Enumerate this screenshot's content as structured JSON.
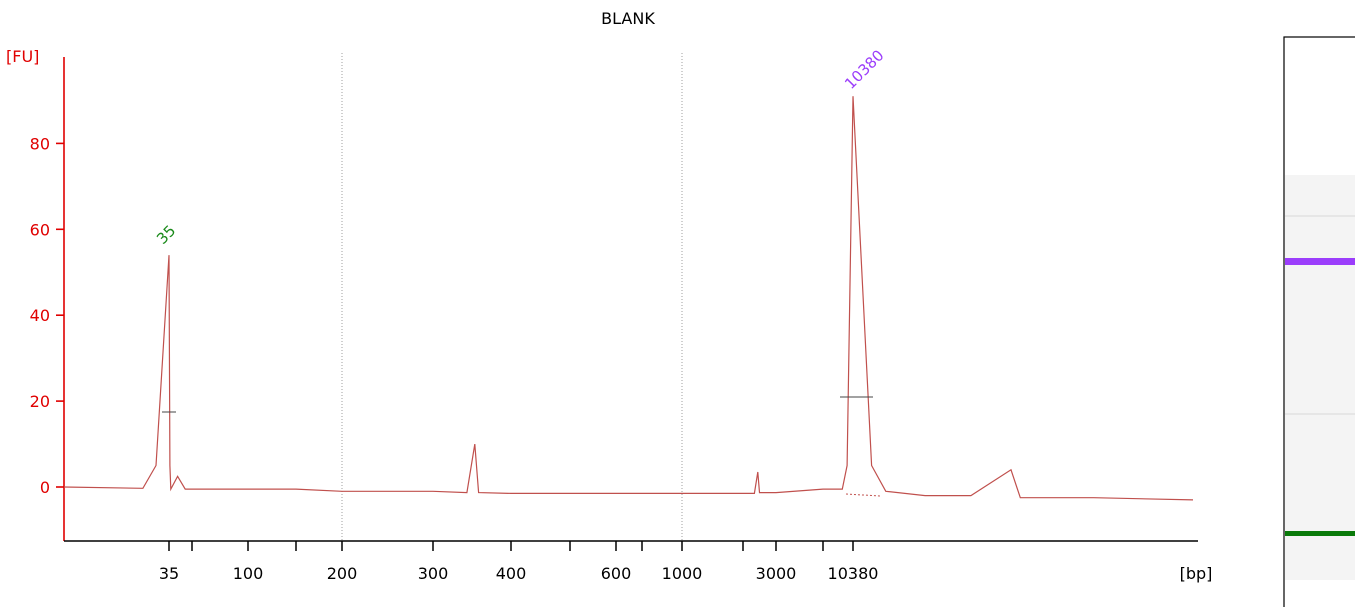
{
  "chart_data": {
    "type": "line",
    "title": "BLANK",
    "ylabel": "[FU]",
    "xlabel": "[bp]",
    "ylim": [
      -12,
      100
    ],
    "yticks": [
      0,
      20,
      40,
      60,
      80
    ],
    "x_scale": "ladder (non-linear base-pair axis)",
    "xtick_labels": [
      "35",
      "100",
      "200",
      "300",
      "400",
      "600",
      "1000",
      "3000",
      "10380"
    ],
    "grid": "dotted vertical lines at 200 and 1000 bp",
    "series": [
      {
        "values_fu": [
          [
            30,
            0
          ],
          [
            34,
            -0.3
          ],
          [
            34.5,
            5
          ],
          [
            35,
            54
          ],
          [
            35.5,
            5
          ],
          [
            36,
            -0.5
          ],
          [
            40,
            2.5
          ],
          [
            45,
            -0.5
          ],
          [
            100,
            -0.5
          ],
          [
            150,
            -0.5
          ],
          [
            200,
            -1
          ],
          [
            300,
            -1
          ],
          [
            340,
            -1.3
          ],
          [
            350,
            10
          ],
          [
            355,
            -1.3
          ],
          [
            400,
            -1.5
          ],
          [
            600,
            -1.5
          ],
          [
            1000,
            -1.5
          ],
          [
            1500,
            -1.5
          ],
          [
            2000,
            -1.5
          ],
          [
            2300,
            -1.5
          ],
          [
            2400,
            3.5
          ],
          [
            2450,
            -1.3
          ],
          [
            3000,
            -1.3
          ],
          [
            5000,
            -0.5
          ],
          [
            8000,
            -0.5
          ],
          [
            9000,
            5
          ],
          [
            10380,
            91
          ],
          [
            11000,
            5
          ],
          [
            11500,
            -1
          ],
          [
            13000,
            -2
          ],
          [
            15000,
            -2
          ],
          [
            17000,
            4
          ],
          [
            17500,
            -2.5
          ],
          [
            22000,
            -2.5
          ],
          [
            30000,
            -3
          ]
        ]
      }
    ],
    "annotations": [
      {
        "text": "35",
        "color": "#1a8a1a"
      },
      {
        "text": "10380",
        "color": "#9b3dfb"
      }
    ],
    "colors": {
      "trace": "#c0504d",
      "axes": "#e00000",
      "marker_upper": "#9b3dfb",
      "marker_lower": "#0a7a0a"
    }
  },
  "gel_lane": {
    "bands": [
      {
        "label": "upper-marker",
        "color": "#9b3dfb"
      },
      {
        "label": "lower-marker",
        "color": "#0a7a0a"
      }
    ]
  }
}
